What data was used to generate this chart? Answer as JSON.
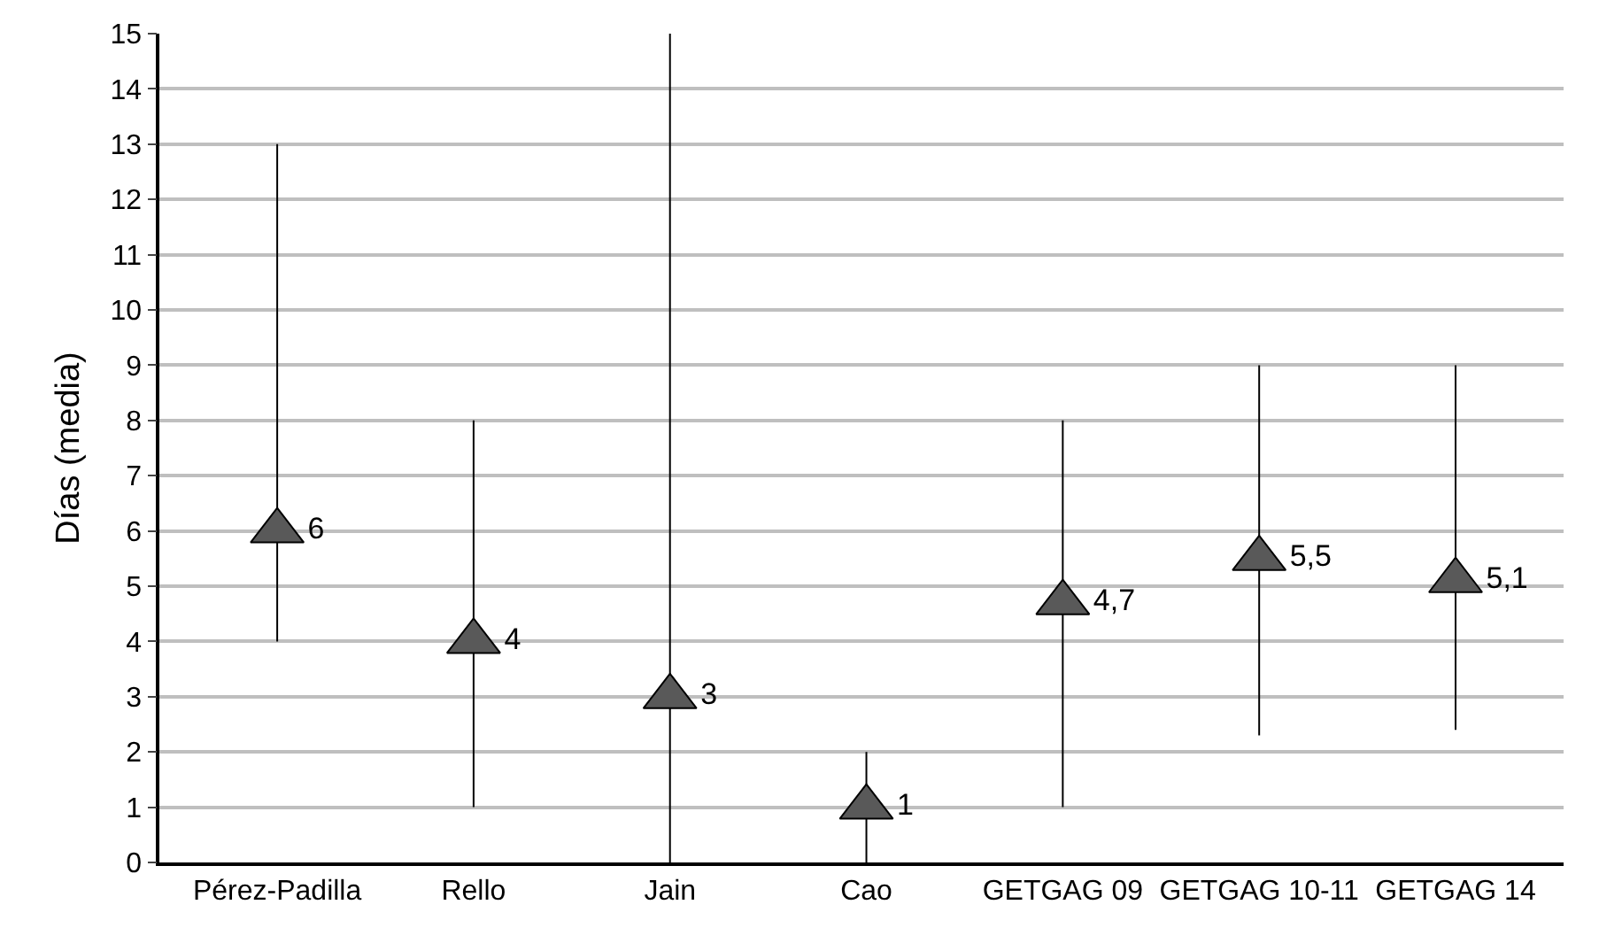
{
  "chart_data": {
    "type": "scatter",
    "ylabel": "Días (media)",
    "categories": [
      "Pérez-Padilla",
      "Rello",
      "Jain",
      "Cao",
      "GETGAG 09",
      "GETGAG 10-11",
      "GETGAG 14"
    ],
    "values": [
      6,
      4,
      3,
      1,
      4.7,
      5.5,
      5.1
    ],
    "value_labels": [
      "6",
      "4",
      "3",
      "1",
      "4,7",
      "5,5",
      "5,1"
    ],
    "errors": [
      [
        4,
        13
      ],
      [
        1,
        8
      ],
      [
        0,
        15
      ],
      [
        0,
        2
      ],
      [
        1,
        8
      ],
      [
        2.3,
        9
      ],
      [
        2.4,
        9
      ]
    ],
    "color": "#595959",
    "marker": "triangle",
    "ylim": [
      0,
      15
    ],
    "yticks": [
      0,
      1,
      2,
      3,
      4,
      5,
      6,
      7,
      8,
      9,
      10,
      11,
      12,
      13,
      14,
      15
    ],
    "grid": "y"
  }
}
